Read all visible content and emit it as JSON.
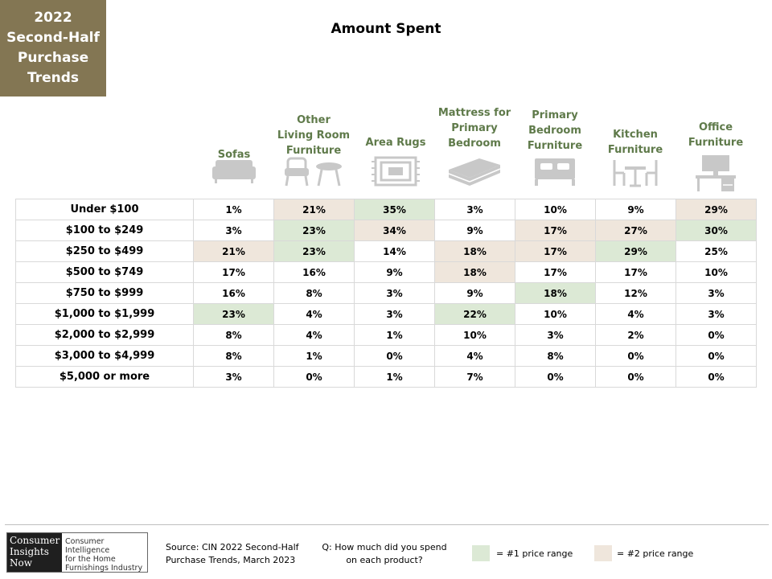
{
  "badge": {
    "text": "2022\nSecond-Half\nPurchase\nTrends"
  },
  "chart_data": {
    "type": "table",
    "title": "Amount Spent",
    "columns": [
      "Sofas",
      "Other\nLiving Room\nFurniture",
      "Area Rugs",
      "Mattress for\nPrimary\nBedroom",
      "Primary\nBedroom\nFurniture",
      "Kitchen\nFurniture",
      "Office\nFurniture"
    ],
    "column_icons": [
      "sofa-icon",
      "armchair-table-icon",
      "area-rug-icon",
      "mattress-icon",
      "bed-icon",
      "kitchen-table-icon",
      "office-desk-icon"
    ],
    "rows": [
      {
        "label": "Under $100",
        "values": [
          "1%",
          "21%",
          "35%",
          "3%",
          "10%",
          "9%",
          "29%"
        ],
        "highlight": [
          0,
          2,
          1,
          0,
          0,
          0,
          2
        ]
      },
      {
        "label": "$100 to $249",
        "values": [
          "3%",
          "23%",
          "34%",
          "9%",
          "17%",
          "27%",
          "30%"
        ],
        "highlight": [
          0,
          1,
          2,
          0,
          2,
          2,
          1
        ]
      },
      {
        "label": "$250 to $499",
        "values": [
          "21%",
          "23%",
          "14%",
          "18%",
          "17%",
          "29%",
          "25%"
        ],
        "highlight": [
          2,
          1,
          0,
          2,
          2,
          1,
          0
        ]
      },
      {
        "label": "$500 to $749",
        "values": [
          "17%",
          "16%",
          "9%",
          "18%",
          "17%",
          "17%",
          "10%"
        ],
        "highlight": [
          0,
          0,
          0,
          2,
          0,
          0,
          0
        ]
      },
      {
        "label": "$750 to $999",
        "values": [
          "16%",
          "8%",
          "3%",
          "9%",
          "18%",
          "12%",
          "3%"
        ],
        "highlight": [
          0,
          0,
          0,
          0,
          1,
          0,
          0
        ]
      },
      {
        "label": "$1,000 to $1,999",
        "values": [
          "23%",
          "4%",
          "3%",
          "22%",
          "10%",
          "4%",
          "3%"
        ],
        "highlight": [
          1,
          0,
          0,
          1,
          0,
          0,
          0
        ]
      },
      {
        "label": "$2,000 to $2,999",
        "values": [
          "8%",
          "4%",
          "1%",
          "10%",
          "3%",
          "2%",
          "0%"
        ],
        "highlight": [
          0,
          0,
          0,
          0,
          0,
          0,
          0
        ]
      },
      {
        "label": "$3,000 to $4,999",
        "values": [
          "8%",
          "1%",
          "0%",
          "4%",
          "8%",
          "0%",
          "0%"
        ],
        "highlight": [
          0,
          0,
          0,
          0,
          0,
          0,
          0
        ]
      },
      {
        "label": "$5,000 or more",
        "values": [
          "3%",
          "0%",
          "1%",
          "7%",
          "0%",
          "0%",
          "0%"
        ],
        "highlight": [
          0,
          0,
          0,
          0,
          0,
          0,
          0
        ]
      }
    ],
    "highlight_colors": {
      "1": "#dce9d5",
      "2": "#efe6dc"
    }
  },
  "legend": {
    "first": {
      "label": "= #1 price range",
      "color": "#dce9d5"
    },
    "second": {
      "label": "= #2 price range",
      "color": "#efe6dc"
    }
  },
  "footer": {
    "logo_left": "Consumer\nInsights\nNow",
    "logo_right": "Consumer Intelligence\nfor the Home\nFurnishings Industry",
    "source": "Source: CIN 2022 Second-Half\nPurchase Trends, March 2023",
    "question": "Q: How much did you spend\non each product?"
  },
  "colors": {
    "badge_bg": "#837653",
    "header_text": "#5f7a4a",
    "icon_gray": "#c8c8c8"
  }
}
